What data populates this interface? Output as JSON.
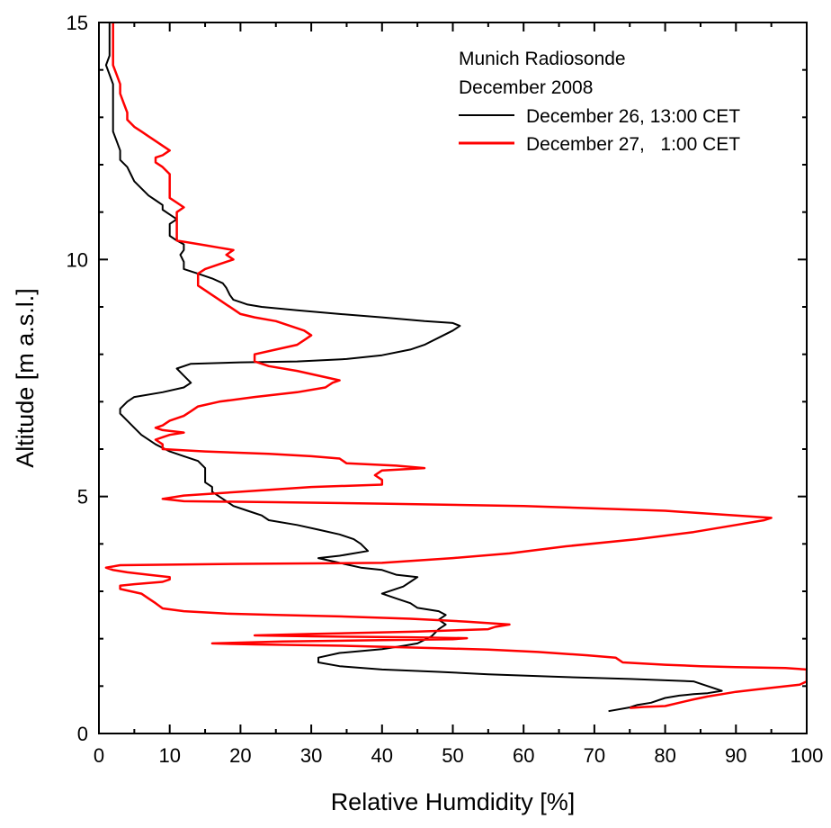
{
  "chart_data": {
    "type": "line",
    "title": "",
    "xlabel": "Relative Humdidity [%]",
    "ylabel": "Altitude [m a.s.l.]",
    "xlim": [
      0,
      100
    ],
    "ylim": [
      0,
      15
    ],
    "xticks": [
      "0",
      "10",
      "20",
      "30",
      "40",
      "50",
      "60",
      "70",
      "80",
      "90",
      "100"
    ],
    "yticks": [
      "0",
      "5",
      "10",
      "15"
    ],
    "grid": false,
    "legend": {
      "placement": "top-right",
      "title_lines": [
        "Munich Radiosonde",
        "December 2008"
      ]
    },
    "series": [
      {
        "name": "December 26, 13:00 CET",
        "color": "#000000",
        "points": [
          [
            72,
            0.47
          ],
          [
            75,
            0.55
          ],
          [
            76,
            0.6
          ],
          [
            78,
            0.65
          ],
          [
            80,
            0.75
          ],
          [
            82,
            0.8
          ],
          [
            84,
            0.83
          ],
          [
            86,
            0.85
          ],
          [
            88,
            0.9
          ],
          [
            86,
            1.0
          ],
          [
            85,
            1.05
          ],
          [
            84,
            1.1
          ],
          [
            75,
            1.15
          ],
          [
            64,
            1.2
          ],
          [
            55,
            1.25
          ],
          [
            48,
            1.3
          ],
          [
            40,
            1.35
          ],
          [
            34,
            1.42
          ],
          [
            31,
            1.5
          ],
          [
            31,
            1.6
          ],
          [
            34,
            1.7
          ],
          [
            40,
            1.78
          ],
          [
            43,
            1.85
          ],
          [
            45,
            1.9
          ],
          [
            47,
            2.05
          ],
          [
            48,
            2.2
          ],
          [
            49,
            2.3
          ],
          [
            48,
            2.4
          ],
          [
            49,
            2.5
          ],
          [
            48,
            2.58
          ],
          [
            45,
            2.65
          ],
          [
            44,
            2.75
          ],
          [
            42,
            2.85
          ],
          [
            40,
            2.95
          ],
          [
            43,
            3.1
          ],
          [
            44,
            3.2
          ],
          [
            45,
            3.3
          ],
          [
            42,
            3.35
          ],
          [
            40,
            3.45
          ],
          [
            37,
            3.5
          ],
          [
            34,
            3.6
          ],
          [
            31,
            3.7
          ],
          [
            34,
            3.75
          ],
          [
            38,
            3.85
          ],
          [
            37,
            4.0
          ],
          [
            36,
            4.1
          ],
          [
            34,
            4.2
          ],
          [
            31,
            4.3
          ],
          [
            28,
            4.4
          ],
          [
            24,
            4.5
          ],
          [
            23,
            4.6
          ],
          [
            21,
            4.7
          ],
          [
            19,
            4.8
          ],
          [
            18,
            4.9
          ],
          [
            17,
            5.0
          ],
          [
            16,
            5.1
          ],
          [
            16,
            5.2
          ],
          [
            15,
            5.3
          ],
          [
            15,
            5.45
          ],
          [
            15,
            5.6
          ],
          [
            14,
            5.75
          ],
          [
            12,
            5.85
          ],
          [
            10,
            5.95
          ],
          [
            8,
            6.1
          ],
          [
            6,
            6.3
          ],
          [
            5,
            6.45
          ],
          [
            4,
            6.6
          ],
          [
            3,
            6.75
          ],
          [
            3,
            6.85
          ],
          [
            4,
            7.0
          ],
          [
            5,
            7.1
          ],
          [
            9,
            7.2
          ],
          [
            12,
            7.3
          ],
          [
            13,
            7.4
          ],
          [
            12,
            7.55
          ],
          [
            11,
            7.7
          ],
          [
            13,
            7.8
          ],
          [
            20,
            7.83
          ],
          [
            28,
            7.85
          ],
          [
            35,
            7.9
          ],
          [
            40,
            7.98
          ],
          [
            44,
            8.1
          ],
          [
            46,
            8.2
          ],
          [
            48,
            8.35
          ],
          [
            50,
            8.5
          ],
          [
            51,
            8.6
          ],
          [
            50,
            8.66
          ],
          [
            46,
            8.7
          ],
          [
            40,
            8.78
          ],
          [
            34,
            8.85
          ],
          [
            28,
            8.93
          ],
          [
            23,
            9.0
          ],
          [
            21,
            9.05
          ],
          [
            20,
            9.1
          ],
          [
            19,
            9.15
          ],
          [
            18.5,
            9.25
          ],
          [
            18,
            9.4
          ],
          [
            17.5,
            9.5
          ],
          [
            16,
            9.6
          ],
          [
            14,
            9.7
          ],
          [
            12,
            9.8
          ],
          [
            12,
            9.95
          ],
          [
            11.5,
            10.1
          ],
          [
            12,
            10.2
          ],
          [
            12,
            10.32
          ],
          [
            11,
            10.4
          ],
          [
            10,
            10.5
          ],
          [
            10,
            10.62
          ],
          [
            10,
            10.75
          ],
          [
            11,
            10.85
          ],
          [
            10,
            10.95
          ],
          [
            9,
            11.05
          ],
          [
            9,
            11.15
          ],
          [
            8,
            11.25
          ],
          [
            7,
            11.35
          ],
          [
            6,
            11.5
          ],
          [
            5,
            11.65
          ],
          [
            4.5,
            11.8
          ],
          [
            4,
            11.95
          ],
          [
            3,
            12.1
          ],
          [
            3,
            12.3
          ],
          [
            2.5,
            12.5
          ],
          [
            2,
            12.7
          ],
          [
            2,
            12.9
          ],
          [
            2,
            13.1
          ],
          [
            2,
            13.4
          ],
          [
            2,
            13.7
          ],
          [
            1.5,
            13.9
          ],
          [
            1,
            14.1
          ],
          [
            1.5,
            14.3
          ],
          [
            1.5,
            14.6
          ],
          [
            1.5,
            15
          ]
        ]
      },
      {
        "name": "December 27,   1:00 CET",
        "color": "#ff0000",
        "points": [
          [
            75,
            0.54
          ],
          [
            77,
            0.56
          ],
          [
            80,
            0.58
          ],
          [
            82,
            0.65
          ],
          [
            84,
            0.72
          ],
          [
            86,
            0.78
          ],
          [
            88,
            0.83
          ],
          [
            90,
            0.88
          ],
          [
            93,
            0.93
          ],
          [
            96,
            0.98
          ],
          [
            99,
            1.03
          ],
          [
            100,
            1.1
          ],
          [
            100,
            1.2
          ],
          [
            100,
            1.35
          ],
          [
            97,
            1.38
          ],
          [
            90,
            1.4
          ],
          [
            85,
            1.42
          ],
          [
            80,
            1.45
          ],
          [
            74,
            1.5
          ],
          [
            73,
            1.6
          ],
          [
            69,
            1.65
          ],
          [
            62,
            1.72
          ],
          [
            55,
            1.77
          ],
          [
            48,
            1.8
          ],
          [
            35,
            1.85
          ],
          [
            22,
            1.88
          ],
          [
            16,
            1.9
          ],
          [
            26,
            1.94
          ],
          [
            40,
            1.97
          ],
          [
            50,
            1.99
          ],
          [
            52,
            2.01
          ],
          [
            44,
            2.03
          ],
          [
            30,
            2.05
          ],
          [
            22,
            2.07
          ],
          [
            30,
            2.1
          ],
          [
            45,
            2.15
          ],
          [
            55,
            2.2
          ],
          [
            56,
            2.25
          ],
          [
            58,
            2.3
          ],
          [
            52,
            2.36
          ],
          [
            44,
            2.42
          ],
          [
            34,
            2.47
          ],
          [
            25,
            2.5
          ],
          [
            18,
            2.53
          ],
          [
            12,
            2.58
          ],
          [
            9,
            2.64
          ],
          [
            8,
            2.75
          ],
          [
            7,
            2.85
          ],
          [
            6,
            2.95
          ],
          [
            3,
            3.05
          ],
          [
            3,
            3.12
          ],
          [
            5,
            3.15
          ],
          [
            9,
            3.2
          ],
          [
            10,
            3.25
          ],
          [
            10,
            3.3
          ],
          [
            7,
            3.35
          ],
          [
            4,
            3.4
          ],
          [
            2,
            3.45
          ],
          [
            1,
            3.5
          ],
          [
            3,
            3.55
          ],
          [
            20,
            3.58
          ],
          [
            40,
            3.6
          ],
          [
            50,
            3.7
          ],
          [
            58,
            3.8
          ],
          [
            66,
            3.95
          ],
          [
            76,
            4.1
          ],
          [
            84,
            4.25
          ],
          [
            90,
            4.4
          ],
          [
            94,
            4.5
          ],
          [
            95,
            4.55
          ],
          [
            80,
            4.7
          ],
          [
            60,
            4.8
          ],
          [
            40,
            4.85
          ],
          [
            25,
            4.88
          ],
          [
            12,
            4.9
          ],
          [
            9,
            4.95
          ],
          [
            12,
            5.02
          ],
          [
            20,
            5.1
          ],
          [
            30,
            5.2
          ],
          [
            40,
            5.25
          ],
          [
            40,
            5.35
          ],
          [
            39,
            5.45
          ],
          [
            40,
            5.55
          ],
          [
            46,
            5.6
          ],
          [
            42,
            5.65
          ],
          [
            35,
            5.7
          ],
          [
            34,
            5.8
          ],
          [
            30,
            5.85
          ],
          [
            24,
            5.9
          ],
          [
            15,
            5.95
          ],
          [
            9,
            6.0
          ],
          [
            9,
            6.1
          ],
          [
            8,
            6.2
          ],
          [
            9,
            6.25
          ],
          [
            10,
            6.3
          ],
          [
            12,
            6.35
          ],
          [
            9,
            6.4
          ],
          [
            8,
            6.45
          ],
          [
            9,
            6.5
          ],
          [
            10,
            6.6
          ],
          [
            12,
            6.7
          ],
          [
            13,
            6.8
          ],
          [
            14,
            6.9
          ],
          [
            17,
            7.0
          ],
          [
            22,
            7.1
          ],
          [
            28,
            7.2
          ],
          [
            32,
            7.3
          ],
          [
            33,
            7.4
          ],
          [
            34,
            7.45
          ],
          [
            31,
            7.55
          ],
          [
            28,
            7.65
          ],
          [
            24,
            7.75
          ],
          [
            22,
            7.85
          ],
          [
            22,
            8.0
          ],
          [
            25,
            8.1
          ],
          [
            28,
            8.2
          ],
          [
            29,
            8.3
          ],
          [
            30,
            8.4
          ],
          [
            29,
            8.5
          ],
          [
            27,
            8.6
          ],
          [
            25,
            8.7
          ],
          [
            22,
            8.78
          ],
          [
            20,
            8.85
          ],
          [
            19,
            8.95
          ],
          [
            18,
            9.05
          ],
          [
            17,
            9.15
          ],
          [
            16,
            9.25
          ],
          [
            15,
            9.35
          ],
          [
            14,
            9.45
          ],
          [
            14,
            9.55
          ],
          [
            14,
            9.7
          ],
          [
            15,
            9.8
          ],
          [
            17,
            9.9
          ],
          [
            19,
            10.0
          ],
          [
            18,
            10.1
          ],
          [
            19,
            10.2
          ],
          [
            17,
            10.25
          ],
          [
            15,
            10.3
          ],
          [
            13,
            10.35
          ],
          [
            11,
            10.4
          ],
          [
            11,
            10.5
          ],
          [
            11,
            10.7
          ],
          [
            11,
            10.9
          ],
          [
            11,
            11.0
          ],
          [
            12,
            11.1
          ],
          [
            11,
            11.2
          ],
          [
            10,
            11.3
          ],
          [
            10,
            11.4
          ],
          [
            10,
            11.6
          ],
          [
            10,
            11.8
          ],
          [
            9,
            11.95
          ],
          [
            8,
            12.05
          ],
          [
            8,
            12.15
          ],
          [
            9,
            12.2
          ],
          [
            10,
            12.3
          ],
          [
            9,
            12.4
          ],
          [
            8,
            12.5
          ],
          [
            7,
            12.6
          ],
          [
            6,
            12.7
          ],
          [
            5,
            12.8
          ],
          [
            4,
            12.95
          ],
          [
            4,
            13.1
          ],
          [
            3.5,
            13.3
          ],
          [
            3,
            13.5
          ],
          [
            3,
            13.7
          ],
          [
            2.5,
            13.9
          ],
          [
            2,
            14.1
          ],
          [
            2,
            14.3
          ],
          [
            2,
            14.6
          ],
          [
            2,
            15
          ]
        ]
      }
    ]
  }
}
